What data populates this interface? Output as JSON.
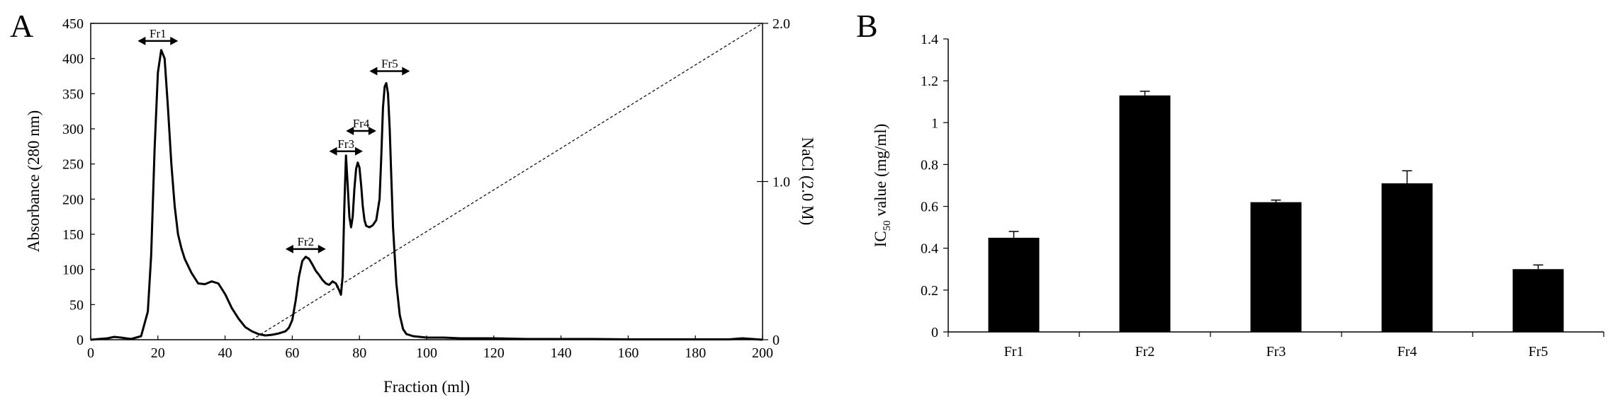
{
  "chart_data": [
    {
      "panel": "A",
      "type": "line",
      "xlabel": "Fraction (ml)",
      "ylabel": "Absorbance (280 nm)",
      "y2label": "NaCl (2.0 M)",
      "xlim": [
        0,
        200
      ],
      "ylim": [
        0,
        450
      ],
      "y2lim": [
        0,
        2.0
      ],
      "xticks": [
        0,
        20,
        40,
        60,
        80,
        100,
        120,
        140,
        160,
        180,
        200
      ],
      "yticks": [
        0,
        50,
        100,
        150,
        200,
        250,
        300,
        350,
        400,
        450
      ],
      "y2ticks": [
        "0",
        "1.0",
        "2.0"
      ],
      "series": [
        {
          "x": [
            0,
            5,
            7,
            9,
            12,
            15,
            17,
            18,
            19,
            20,
            21,
            22,
            23,
            24,
            25,
            26,
            27,
            28,
            30,
            32,
            34,
            36,
            38,
            40,
            42,
            44,
            46,
            48,
            50,
            52,
            54,
            56,
            58,
            59,
            60,
            61,
            62,
            63,
            64,
            65,
            66,
            67,
            68,
            69,
            70,
            71,
            72,
            73,
            74,
            74.5,
            75,
            75.5,
            76,
            76.5,
            77,
            77.5,
            78,
            78.5,
            79,
            79.5,
            80,
            80.5,
            81,
            81.5,
            82,
            83,
            84,
            85,
            86,
            86.5,
            87,
            87.5,
            88,
            88.5,
            89,
            89.5,
            90,
            91,
            92,
            93,
            94,
            96,
            98,
            100,
            105,
            110,
            120,
            130,
            140,
            150,
            160,
            170,
            180,
            190,
            194,
            197,
            200
          ],
          "y": [
            0,
            2,
            4,
            3,
            1,
            5,
            40,
            120,
            270,
            380,
            412,
            400,
            330,
            250,
            190,
            150,
            130,
            115,
            95,
            80,
            79,
            83,
            80,
            65,
            45,
            30,
            18,
            12,
            8,
            6,
            7,
            9,
            12,
            17,
            28,
            55,
            90,
            112,
            118,
            115,
            107,
            98,
            92,
            85,
            80,
            78,
            83,
            80,
            70,
            64,
            90,
            190,
            262,
            220,
            175,
            160,
            175,
            215,
            243,
            252,
            245,
            220,
            190,
            170,
            162,
            160,
            163,
            170,
            200,
            260,
            330,
            360,
            365,
            350,
            300,
            230,
            160,
            80,
            35,
            15,
            8,
            5,
            4,
            3,
            3,
            2,
            2,
            1,
            1,
            1,
            0.5,
            0.5,
            0.5,
            0.5,
            2,
            1,
            0
          ]
        }
      ],
      "gradient": {
        "x": [
          48,
          200
        ],
        "y2": [
          0,
          2.0
        ]
      },
      "fraction_markers": [
        {
          "label": "Fr1",
          "x_from": 14,
          "x_to": 26
        },
        {
          "label": "Fr2",
          "x_from": 58,
          "x_to": 70
        },
        {
          "label": "Fr3",
          "x_from": 71,
          "x_to": 81
        },
        {
          "label": "Fr4",
          "x_from": 76,
          "x_to": 85
        },
        {
          "label": "Fr5",
          "x_from": 83,
          "x_to": 95
        }
      ]
    },
    {
      "panel": "B",
      "type": "bar",
      "ylabel_main": "IC",
      "ylabel_sub": "50",
      "ylabel_rest": " value (mg/ml)",
      "ylim": [
        0,
        1.4
      ],
      "yticks": [
        "0",
        "0.2",
        "0.4",
        "0.6",
        "0.8",
        "1",
        "1.2",
        "1.4"
      ],
      "categories": [
        "Fr1",
        "Fr2",
        "Fr3",
        "Fr4",
        "Fr5"
      ],
      "values": [
        0.45,
        1.13,
        0.62,
        0.71,
        0.3
      ],
      "errors": [
        0.03,
        0.02,
        0.01,
        0.06,
        0.02
      ],
      "colors": {
        "bar": "#000000",
        "axis": "#000000"
      }
    }
  ]
}
